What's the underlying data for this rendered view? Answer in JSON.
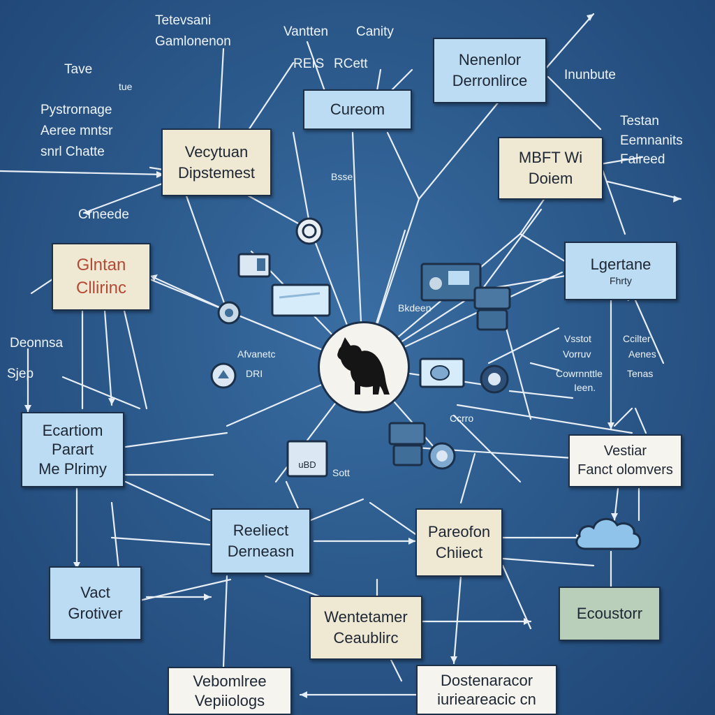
{
  "colors": {
    "background": "#2c5a8c",
    "box_blue": "#bcdcf4",
    "box_cream": "#efe8d2",
    "box_white": "#f6f4ee",
    "box_green": "#b9cfb9",
    "accent_red": "#b34a35",
    "wire": "#e8eef5"
  },
  "floating_labels": {
    "top_left_1": "Tetevsani",
    "top_left_2": "Gamlonenon",
    "top_mid_1": "Vantten",
    "top_mid_2": "Canity",
    "top_mid_3": "REIS",
    "top_mid_4": "RCett",
    "left_tave": "Tave",
    "left_tave_small": "tue",
    "left_block_1": "Pystrornage",
    "left_block_2": "Aeree mntsr",
    "left_block_3": "snrl Chatte",
    "left_crneede": "Crneede",
    "left_deonnsa": "Deonnsa",
    "left_sjep": "Sjep",
    "right_inunbute": "Inunbute",
    "right_block_1": "Testan",
    "right_block_2": "Eemnanits",
    "right_block_3": "Falreed",
    "right_mid_1": "Vsstot",
    "right_mid_2": "Vorruv",
    "right_mid_3": "Cowrnnttle",
    "right_mid_4": "Ieen.",
    "right_mid_5": "Ccilter",
    "right_mid_6": "Aenes",
    "right_mid_7": "Tenas",
    "center_small_1": "Bsse",
    "center_small_2": "Bkdeen",
    "center_small_3": "Afvanetc",
    "center_small_4": "DRI",
    "center_small_5": "Ccrro",
    "center_small_6": "Sott",
    "monitor_text": "uBD"
  },
  "boxes": {
    "nenenlor": [
      "Nenenlor",
      "Derronlirce"
    ],
    "cureom": [
      "Cureom"
    ],
    "vecytuan": [
      "Vecytuan",
      "Dipstemest"
    ],
    "mbft": [
      "MBFT Wi",
      "Doiem"
    ],
    "glntan": [
      "Glntan",
      "Cllirinc"
    ],
    "lgertane": [
      "Lgertane",
      "Fhrty"
    ],
    "ecartiom": [
      "Ecartiom",
      "Parart",
      "Me Plrimy"
    ],
    "vestiar": [
      "Vestiar",
      "Fanct olomvers"
    ],
    "reeliect": [
      "Reeliect",
      "Derneasn"
    ],
    "pareofon": [
      "Pareofon",
      "Chiiect"
    ],
    "vact": [
      "Vact",
      "Grotiver"
    ],
    "ecoustorr": [
      "Ecoustorr"
    ],
    "wentetamer": [
      "Wentetamer",
      "Ceaublirc"
    ],
    "vebomlree": [
      "Vebomlree",
      "Vepiiologs"
    ],
    "dostenaracor": [
      "Dostenaracor",
      "iurieareacic cn"
    ]
  },
  "icons": [
    "cat-silhouette-icon",
    "gear-icon",
    "monitor-icon",
    "laptop-icon",
    "cloud-icon",
    "lock-icon",
    "tablet-icon",
    "printer-icon",
    "camera-icon",
    "phone-icon"
  ]
}
